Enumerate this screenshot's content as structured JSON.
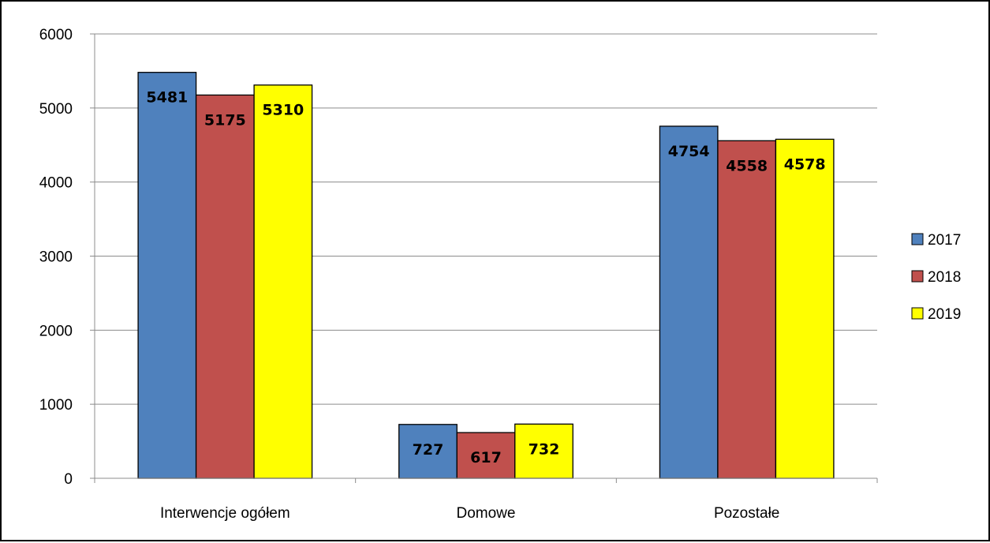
{
  "chart_data": {
    "type": "bar",
    "categories": [
      "Interwencje ogółem",
      "Domowe",
      "Pozostałe"
    ],
    "series": [
      {
        "name": "2017",
        "color": "#4F81BD",
        "values": [
          5481,
          727,
          4754
        ]
      },
      {
        "name": "2018",
        "color": "#C0504D",
        "values": [
          5175,
          617,
          4558
        ]
      },
      {
        "name": "2019",
        "color": "#FFFF00",
        "values": [
          5310,
          732,
          4578
        ]
      }
    ],
    "title": "",
    "xlabel": "",
    "ylabel": "",
    "ylim": [
      0,
      6000
    ],
    "yticks": [
      0,
      1000,
      2000,
      3000,
      4000,
      5000,
      6000
    ],
    "grid": true,
    "legend_position": "right",
    "data_labels": true
  }
}
